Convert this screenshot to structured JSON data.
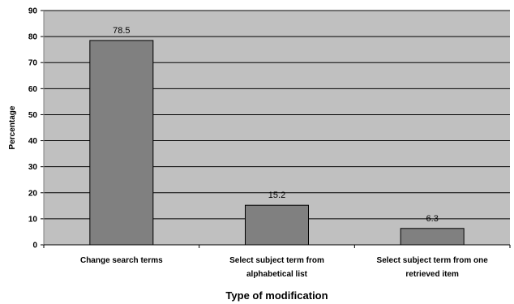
{
  "chart_data": {
    "type": "bar",
    "title": "",
    "xlabel": "Type of modification",
    "ylabel": "Percentage",
    "categories": [
      [
        "Change search terms"
      ],
      [
        "Select subject term from",
        "alphabetical list"
      ],
      [
        "Select subject term from one",
        "retrieved item"
      ]
    ],
    "values": [
      78.5,
      15.2,
      6.3
    ],
    "value_labels": [
      "78.5",
      "15.2",
      "6.3"
    ],
    "ylim": [
      0,
      90
    ],
    "yticks": [
      0,
      10,
      20,
      30,
      40,
      50,
      60,
      70,
      80,
      90
    ],
    "grid": true,
    "legend": "none",
    "colors": {
      "plot_background": "#c0c0c0",
      "bar_fill": "#808080",
      "bar_stroke": "#000000",
      "gridline": "#000000",
      "axis": "#808080"
    }
  }
}
